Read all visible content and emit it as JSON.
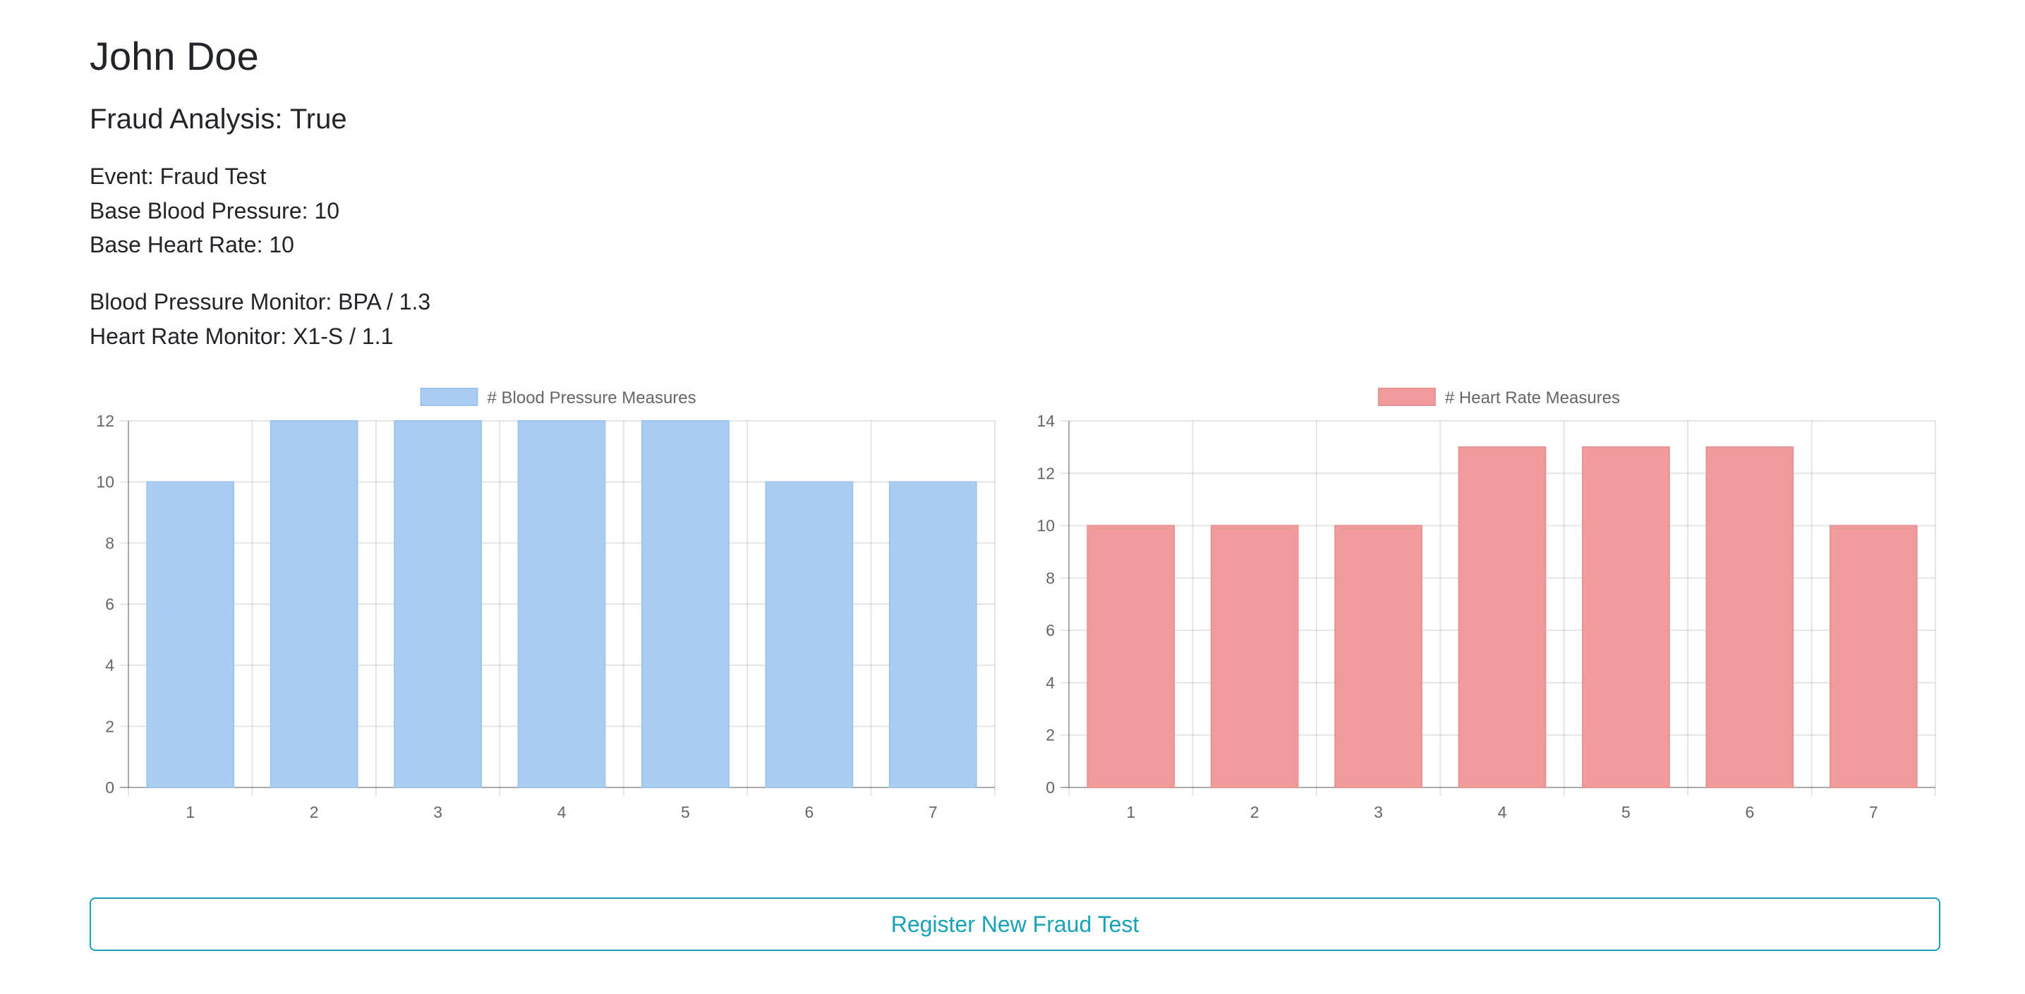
{
  "patient": {
    "name": "John Doe"
  },
  "fraud_analysis": "Fraud Analysis: True",
  "details": {
    "event": "Event: Fraud Test",
    "base_bp": "Base Blood Pressure: 10",
    "base_hr": "Base Heart Rate: 10"
  },
  "monitors": {
    "bp": "Blood Pressure Monitor: BPA / 1.3",
    "hr": "Heart Rate Monitor: X1-S / 1.1"
  },
  "actions": {
    "register": "Register New Fraud Test"
  },
  "chart_data": [
    {
      "type": "bar",
      "categories": [
        "1",
        "2",
        "3",
        "4",
        "5",
        "6",
        "7"
      ],
      "series": [
        {
          "name": "# Blood Pressure Measures",
          "values": [
            10,
            12,
            12,
            12,
            12,
            10,
            10
          ]
        }
      ],
      "ylim": [
        0,
        12
      ],
      "yticks": [
        0,
        2,
        4,
        6,
        8,
        10,
        12
      ],
      "grid": true,
      "legend": "top",
      "fill": "#abcdf2",
      "stroke": "#9ec4ec"
    },
    {
      "type": "bar",
      "categories": [
        "1",
        "2",
        "3",
        "4",
        "5",
        "6",
        "7"
      ],
      "series": [
        {
          "name": "# Heart Rate Measures",
          "values": [
            10,
            10,
            10,
            13,
            13,
            13,
            10
          ]
        }
      ],
      "ylim": [
        0,
        14
      ],
      "yticks": [
        0,
        2,
        4,
        6,
        8,
        10,
        12,
        14
      ],
      "grid": true,
      "legend": "top",
      "fill": "#f19c9c",
      "stroke": "#e59393"
    }
  ]
}
